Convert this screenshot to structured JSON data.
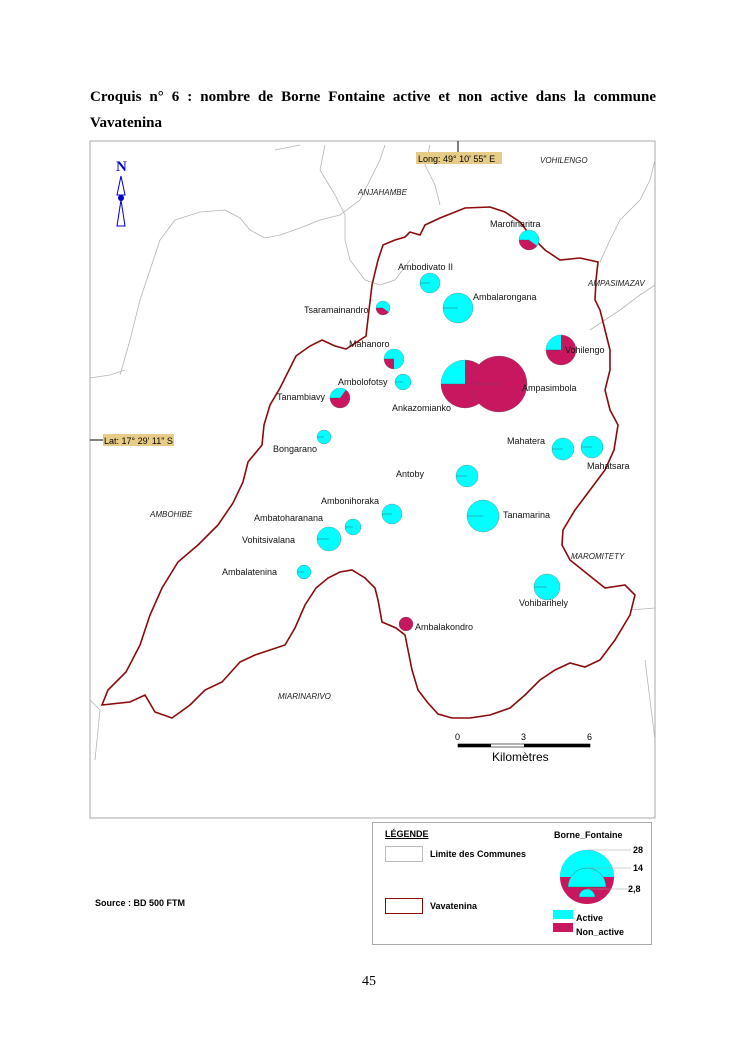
{
  "title_line1": "Croquis n° 6 : nombre de Borne Fontaine active et non active dans la commune",
  "title_line2": "Vavatenina",
  "map": {
    "north_label": "N",
    "longitude_label": "Long: 49° 10' 55\" E",
    "latitude_label": "Lat: 17° 29' 11\" S",
    "neighbouring_communes": [
      "VOHILENGO",
      "ANJAHAMBE",
      "AMPASIMAZAV",
      "AMBOHIBE",
      "MAROMITETY",
      "MIARINARIVO"
    ],
    "localities": [
      {
        "name": "Marofinaritra",
        "active_fraction": 0.6
      },
      {
        "name": "Ambodivato II",
        "active_fraction": 1
      },
      {
        "name": "Ambalarongana",
        "active_fraction": 1
      },
      {
        "name": "Tsaramainandro",
        "active_fraction": 0.6
      },
      {
        "name": "Mahanoro",
        "active_fraction": 0.75
      },
      {
        "name": "Ambolofotsy",
        "active_fraction": 1
      },
      {
        "name": "Tanambiavy",
        "active_fraction": 0.35
      },
      {
        "name": "Vohilengo",
        "active_fraction": 0.25
      },
      {
        "name": "Ankazomianko",
        "active_fraction": 0.25
      },
      {
        "name": "Ampasimbola",
        "active_fraction": 0
      },
      {
        "name": "Bongarano",
        "active_fraction": 1
      },
      {
        "name": "Mahatera",
        "active_fraction": 1
      },
      {
        "name": "Mahatsara",
        "active_fraction": 1
      },
      {
        "name": "Antoby",
        "active_fraction": 1
      },
      {
        "name": "Tanamarina",
        "active_fraction": 1
      },
      {
        "name": "Ambonihoraka",
        "active_fraction": 1
      },
      {
        "name": "Ambatoharanana",
        "active_fraction": 1
      },
      {
        "name": "Vohitsivalana",
        "active_fraction": 1
      },
      {
        "name": "Ambalatenina",
        "active_fraction": 1
      },
      {
        "name": "Vohibarihely",
        "active_fraction": 1
      },
      {
        "name": "Ambalakondro",
        "active_fraction": 0
      }
    ],
    "scale": {
      "ticks": [
        "0",
        "3",
        "6"
      ],
      "unit": "Kilomètres"
    }
  },
  "legend": {
    "title": "LÉGENDE",
    "communes_label": "Limite des Communes",
    "vavatenina_label": "Vavatenina",
    "symbol_title": "Borne_Fontaine",
    "size_values": [
      "28",
      "14",
      "2,8"
    ],
    "active_label": "Active",
    "non_active_label": "Non_active"
  },
  "colors": {
    "active": "#00ffff",
    "non_active": "#c8175f",
    "boundary": "#8b0a0a",
    "commune_limits": "#b5b5b5",
    "coord_label_bg": "#e6cc86",
    "north_arrow": "#0000cc"
  },
  "source": "Source : BD 500  FTM",
  "page_number": "45"
}
